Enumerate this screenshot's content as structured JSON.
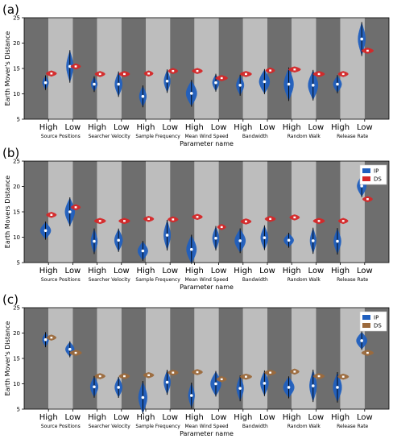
{
  "chart_data": [
    {
      "panel_label": "(a)",
      "type": "violin",
      "ylabel": "Earth Mover's Distance",
      "xlabel": "Parameter name",
      "ylim": [
        5,
        25
      ],
      "yticks": [
        5,
        10,
        15,
        20,
        25
      ],
      "level_labels": [
        "High",
        "Low"
      ],
      "categories": [
        "Source Positions",
        "Searcher Velocity",
        "Sample Frequency",
        "Mean Wind Speed",
        "Bandwidth",
        "Random Walk",
        "Release Rate"
      ],
      "legend": [],
      "series": [
        {
          "color": "#1f5fbf",
          "median": [
            12.2,
            15.4,
            11.9,
            11.9,
            9.5,
            12.5,
            10.1,
            12.2,
            11.7,
            12.4,
            11.9,
            11.7,
            11.9,
            20.8
          ]
        },
        {
          "color": "#d62728",
          "median": [
            14.0,
            15.4,
            13.9,
            13.9,
            14.0,
            14.5,
            14.5,
            13.1,
            13.9,
            14.6,
            14.8,
            13.9,
            13.9,
            18.5
          ]
        }
      ]
    },
    {
      "panel_label": "(b)",
      "type": "violin",
      "ylabel": "Earth Movers Distance",
      "xlabel": "Parameter name",
      "ylim": [
        5,
        25
      ],
      "yticks": [
        5,
        10,
        15,
        20,
        25
      ],
      "level_labels": [
        "High",
        "Low"
      ],
      "categories": [
        "Source Positions",
        "Searcher Velocity",
        "Sample Frequency",
        "Mean Wind Speed",
        "Bandwidth",
        "Random Walk",
        "Release Rate"
      ],
      "legend": [
        "IP",
        "DS"
      ],
      "series": [
        {
          "name": "IP",
          "color": "#1f5fbf",
          "median": [
            11.3,
            15.0,
            9.2,
            9.4,
            7.3,
            10.4,
            7.6,
            9.8,
            9.3,
            9.9,
            9.4,
            9.3,
            9.2,
            20.1
          ]
        },
        {
          "name": "DS",
          "color": "#d62728",
          "median": [
            14.4,
            15.9,
            13.2,
            13.2,
            13.6,
            13.5,
            14.0,
            12.0,
            13.1,
            13.6,
            13.9,
            13.2,
            13.2,
            17.5
          ]
        }
      ]
    },
    {
      "panel_label": "(c)",
      "type": "violin",
      "ylabel": "Earth Mover's Distance",
      "xlabel": "Parameter name",
      "ylim": [
        5,
        25
      ],
      "yticks": [
        5,
        10,
        15,
        20,
        25
      ],
      "level_labels": [
        "High",
        "Low"
      ],
      "categories": [
        "Source Positions",
        "Searcher Velocity",
        "Sample Frequency",
        "Mean Wind Speed",
        "Bandwidth",
        "Random Walk",
        "Release Rate"
      ],
      "legend": [
        "IP",
        "DS"
      ],
      "series": [
        {
          "name": "IP",
          "color": "#1f5fbf",
          "median": [
            18.7,
            16.8,
            9.4,
            9.3,
            7.3,
            10.3,
            7.7,
            10.0,
            9.1,
            10.1,
            9.3,
            9.6,
            9.3,
            18.5
          ]
        },
        {
          "name": "DS",
          "color": "#9c6a3c",
          "median": [
            19.1,
            16.1,
            11.5,
            11.5,
            11.7,
            12.2,
            12.3,
            10.9,
            11.4,
            12.2,
            12.4,
            11.5,
            11.4,
            16.1
          ]
        }
      ]
    }
  ]
}
